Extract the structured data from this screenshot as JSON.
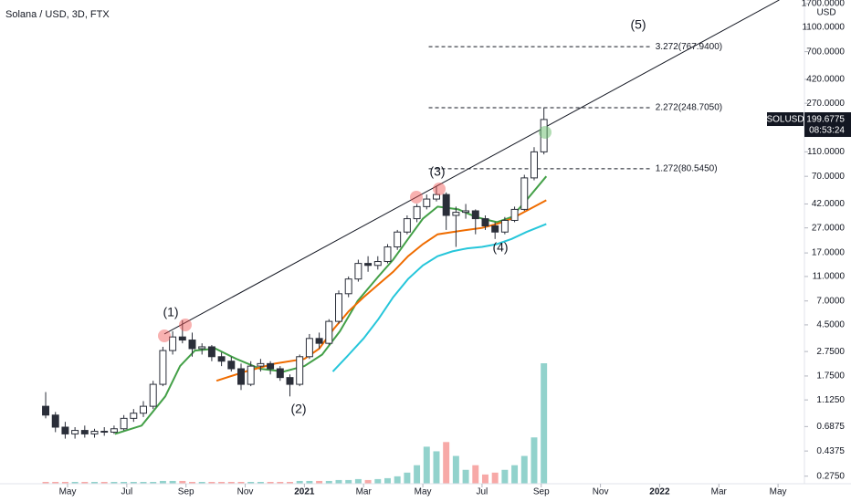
{
  "chart_data": {
    "type": "candlestick",
    "title": "Solana / USD, 3D, FTX",
    "y_unit": "USD",
    "log_scale": true,
    "xlim": [
      1.717,
      28.86
    ],
    "ylim": [
      0.239,
      1819
    ],
    "xticks": [
      {
        "value": 4,
        "label": "May"
      },
      {
        "value": 6,
        "label": "Jul"
      },
      {
        "value": 8,
        "label": "Sep"
      },
      {
        "value": 10,
        "label": "Nov"
      },
      {
        "value": 12,
        "label": "2021"
      },
      {
        "value": 14,
        "label": "Mar"
      },
      {
        "value": 16,
        "label": "May"
      },
      {
        "value": 18,
        "label": "Jul"
      },
      {
        "value": 20,
        "label": "Sep"
      },
      {
        "value": 22,
        "label": "Nov"
      },
      {
        "value": 24,
        "label": "2022"
      },
      {
        "value": 26,
        "label": "Mar"
      },
      {
        "value": 28,
        "label": "May"
      }
    ],
    "yticks": [
      {
        "value": 1700,
        "label": "1700.0000"
      },
      {
        "value": 1100,
        "label": "1100.0000"
      },
      {
        "value": 700,
        "label": "700.0000"
      },
      {
        "value": 420,
        "label": "420.0000"
      },
      {
        "value": 270,
        "label": "270.0000"
      },
      {
        "value": 110,
        "label": "110.0000"
      },
      {
        "value": 70,
        "label": "70.0000"
      },
      {
        "value": 42,
        "label": "42.0000"
      },
      {
        "value": 27,
        "label": "27.0000"
      },
      {
        "value": 17,
        "label": "17.0000"
      },
      {
        "value": 11,
        "label": "11.0000"
      },
      {
        "value": 7,
        "label": "7.0000"
      },
      {
        "value": 4.5,
        "label": "4.5000"
      },
      {
        "value": 2.75,
        "label": "2.7500"
      },
      {
        "value": 1.75,
        "label": "1.7500"
      },
      {
        "value": 1.125,
        "label": "1.1250"
      },
      {
        "value": 0.6875,
        "label": "0.6875"
      },
      {
        "value": 0.4375,
        "label": "0.4375"
      },
      {
        "value": 0.275,
        "label": "0.2750"
      }
    ],
    "candles": {
      "x": [
        3.26,
        3.59,
        3.92,
        4.25,
        4.58,
        4.91,
        5.24,
        5.57,
        5.9,
        6.23,
        6.56,
        6.89,
        7.22,
        7.55,
        7.88,
        8.21,
        8.54,
        8.87,
        9.2,
        9.53,
        9.86,
        10.19,
        10.52,
        10.85,
        11.18,
        11.51,
        11.84,
        12.17,
        12.5,
        12.83,
        13.16,
        13.49,
        13.82,
        14.15,
        14.48,
        14.81,
        15.14,
        15.47,
        15.8,
        16.13,
        16.46,
        16.79,
        17.12,
        17.45,
        17.78,
        18.11,
        18.44,
        18.77,
        19.1,
        19.43,
        19.76,
        20.09
      ],
      "open": [
        1.0,
        0.85,
        0.68,
        0.6,
        0.64,
        0.6,
        0.63,
        0.62,
        0.66,
        0.8,
        0.88,
        1.0,
        1.5,
        2.8,
        3.6,
        3.4,
        2.9,
        3.0,
        2.5,
        2.3,
        2.0,
        1.5,
        2.1,
        2.2,
        2.0,
        1.7,
        1.5,
        2.5,
        3.5,
        3.2,
        4.8,
        8.0,
        10.5,
        14,
        13.5,
        14.5,
        19,
        25,
        32,
        40,
        46,
        50,
        34,
        36,
        37,
        32,
        28,
        25,
        31,
        38,
        68,
        110
      ],
      "high": [
        1.3,
        0.9,
        0.75,
        0.68,
        0.7,
        0.66,
        0.68,
        0.7,
        0.85,
        0.95,
        1.1,
        1.6,
        3.0,
        4.0,
        4.9,
        3.9,
        3.2,
        3.1,
        2.7,
        2.5,
        2.2,
        2.3,
        2.4,
        2.3,
        2.1,
        1.8,
        2.6,
        3.8,
        3.9,
        5.0,
        8.5,
        11,
        15,
        16,
        16,
        20,
        26,
        34,
        42,
        50,
        58,
        52,
        40,
        42,
        38,
        34,
        30,
        33,
        40,
        72,
        120,
        250
      ],
      "low": [
        0.8,
        0.62,
        0.55,
        0.55,
        0.56,
        0.56,
        0.58,
        0.6,
        0.64,
        0.75,
        0.82,
        0.95,
        1.45,
        2.6,
        3.2,
        2.5,
        2.6,
        2.3,
        2.1,
        1.9,
        1.35,
        1.45,
        1.9,
        1.8,
        1.6,
        1.2,
        1.45,
        2.4,
        2.9,
        3.1,
        4.6,
        7.5,
        10,
        12,
        12.5,
        14,
        18,
        24,
        30,
        38,
        44,
        26,
        19,
        32,
        24,
        26,
        22,
        24,
        30,
        37,
        65,
        105
      ],
      "close": [
        0.85,
        0.68,
        0.6,
        0.64,
        0.6,
        0.63,
        0.62,
        0.66,
        0.8,
        0.88,
        1.0,
        1.5,
        2.8,
        3.6,
        3.4,
        2.9,
        3.0,
        2.5,
        2.3,
        2.0,
        1.5,
        2.1,
        2.2,
        2.0,
        1.7,
        1.5,
        2.5,
        3.5,
        3.2,
        4.8,
        8.0,
        10.5,
        14,
        13.5,
        14.5,
        19,
        25,
        32,
        40,
        46,
        50,
        34,
        36,
        37,
        32,
        28,
        25,
        31,
        38,
        68,
        110,
        200
      ],
      "volume": [
        2,
        2,
        2,
        2,
        2,
        2,
        2,
        2,
        2,
        2,
        2,
        2,
        3,
        3,
        3,
        2,
        2,
        2,
        2,
        2,
        2,
        2,
        2,
        2,
        2,
        2,
        3,
        3,
        3,
        3,
        4,
        4,
        5,
        4,
        5,
        6,
        8,
        12,
        20,
        40,
        35,
        45,
        30,
        15,
        20,
        10,
        12,
        15,
        20,
        30,
        50,
        130
      ]
    },
    "moving_averages": [
      {
        "color": "#43a047",
        "x": [
          5.6,
          6.5,
          7.3,
          7.8,
          8.3,
          9.0,
          9.7,
          10.5,
          11.3,
          12.0,
          12.6,
          13.2,
          13.8,
          14.5,
          15.0,
          15.5,
          16.0,
          16.5,
          17.2,
          17.8,
          18.5,
          19.0,
          19.5,
          20.17
        ],
        "values": [
          0.6,
          0.7,
          1.2,
          2.1,
          2.8,
          2.9,
          2.4,
          2.0,
          1.9,
          2.1,
          2.6,
          4,
          7,
          11,
          15,
          22,
          32,
          40,
          38,
          33,
          30,
          33,
          45,
          70
        ]
      },
      {
        "color": "#ef6c00",
        "x": [
          9.03,
          10,
          11,
          12,
          12.5,
          13,
          13.5,
          14,
          14.5,
          15,
          15.5,
          16,
          16.5,
          17,
          17.5,
          18,
          18.5,
          19,
          19.5,
          20.17
        ],
        "values": [
          1.6,
          1.9,
          2.2,
          2.4,
          2.9,
          4.2,
          5.8,
          7.5,
          9.5,
          12,
          16,
          20,
          24,
          25,
          26,
          27,
          29,
          32,
          37,
          45
        ]
      },
      {
        "color": "#26c6da",
        "x": [
          12.96,
          13.5,
          14,
          14.5,
          15,
          15.5,
          16,
          16.5,
          17,
          17.5,
          18,
          18.5,
          19,
          19.5,
          20.17
        ],
        "values": [
          1.9,
          2.6,
          3.5,
          5,
          7.5,
          10.5,
          13.5,
          16,
          17.5,
          18.5,
          19,
          20,
          22,
          25,
          29
        ]
      }
    ],
    "trendline": {
      "x": [
        7.27,
        28.04
      ],
      "values": [
        3.8,
        1820
      ]
    },
    "fib_levels": {
      "x": [
        16.2,
        23.67
      ],
      "levels": [
        {
          "value": 767.94,
          "label": "3.272(767.9400)"
        },
        {
          "value": 248.705,
          "label": "2.272(248.7050)"
        },
        {
          "value": 80.545,
          "label": "1.272(80.5450)"
        }
      ]
    },
    "waves": [
      "(1)",
      "(2)",
      "(3)",
      "(4)",
      "(5)"
    ],
    "symbol": "SOLUSD",
    "last_price": 199.6775,
    "countdown": "08:53:24"
  }
}
